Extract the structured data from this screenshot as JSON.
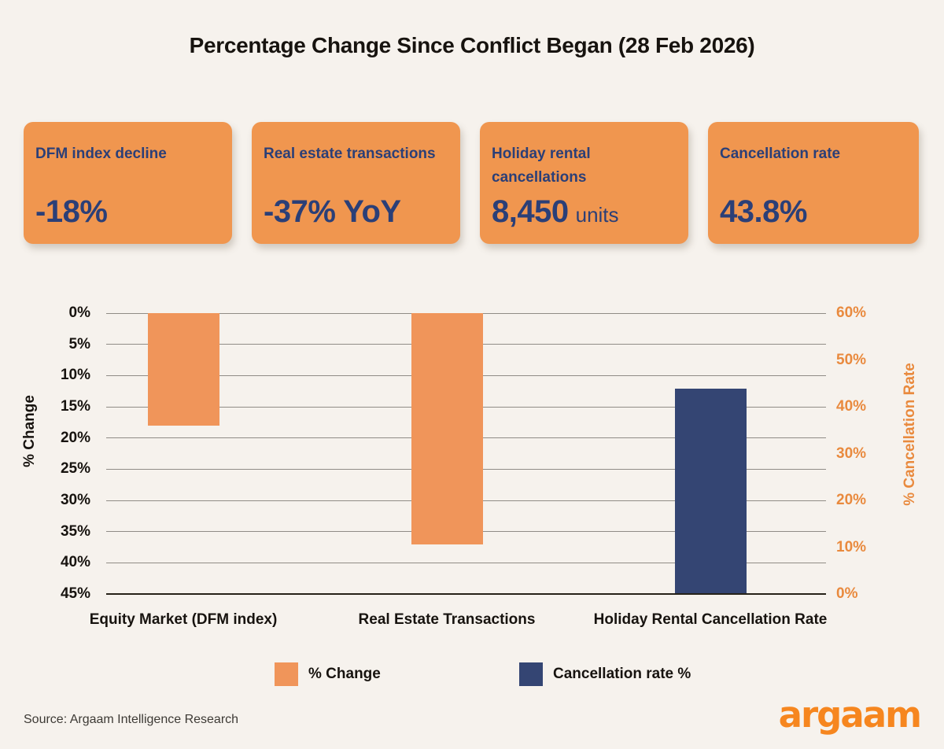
{
  "title": "Percentage Change Since Conflict Began (28 Feb 2026)",
  "cards": [
    {
      "label": "DFM index decline",
      "value": "-18%",
      "suffix": ""
    },
    {
      "label": "Real estate transactions",
      "value": "-37% YoY",
      "suffix": ""
    },
    {
      "label": "Holiday rental cancellations",
      "value": "8,450",
      "suffix": "units"
    },
    {
      "label": "Cancellation rate",
      "value": "43.8%",
      "suffix": ""
    }
  ],
  "chart_data": {
    "type": "bar",
    "title": "Percentage Change Since Conflict Began (28 Feb 2026)",
    "categories": [
      "Equity Market (DFM index)",
      "Real Estate Transactions",
      "Holiday Rental Cancellation Rate"
    ],
    "series": [
      {
        "name": "% Change",
        "axis": "left",
        "color": "#F0955A",
        "values": [
          -18,
          -37,
          null
        ]
      },
      {
        "name": "Cancellation rate %",
        "axis": "right",
        "color": "#344573",
        "values": [
          null,
          null,
          43.8
        ]
      }
    ],
    "left_axis": {
      "label": "% Change",
      "min": 0,
      "max": 45,
      "step": 5,
      "tick_suffix": "%",
      "direction": "inverted-down"
    },
    "right_axis": {
      "label": "% Cancellation Rate",
      "min": 0,
      "max": 60,
      "step": 10,
      "tick_suffix": "%",
      "direction": "up"
    },
    "grid": true,
    "legend_position": "bottom"
  },
  "legend": {
    "items": [
      {
        "label": "% Change",
        "color": "#F0955A"
      },
      {
        "label": "Cancellation rate %",
        "color": "#344573"
      }
    ]
  },
  "footer": {
    "source": "Source: Argaam Intelligence Research",
    "logo_text": "argaam"
  },
  "colors": {
    "background": "#F6F2ED",
    "card_background": "#F0964F",
    "card_text": "#2B3F77",
    "bar_orange": "#F0955A",
    "bar_navy": "#344573",
    "right_axis_orange": "#E98A3E",
    "logo_orange": "#F6861F"
  }
}
